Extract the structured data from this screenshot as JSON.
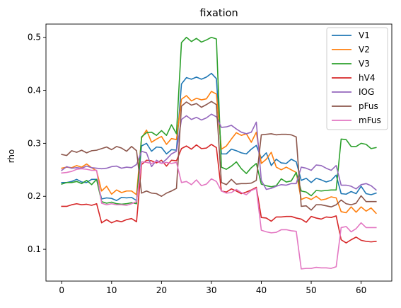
{
  "chart_data": {
    "type": "line",
    "title": "fixation",
    "xlabel": "",
    "ylabel": "rho",
    "xlim": [
      -3.15,
      66.15
    ],
    "ylim": [
      0.04,
      0.525
    ],
    "xticks": [
      0,
      10,
      20,
      30,
      40,
      50,
      60
    ],
    "yticks": [
      0.1,
      0.2,
      0.3,
      0.4,
      0.5
    ],
    "grid": false,
    "legend_position": "upper-right",
    "series": [
      {
        "name": "V1",
        "color": "#1f77b4",
        "values": [
          0.226,
          0.226,
          0.228,
          0.232,
          0.227,
          0.226,
          0.232,
          0.232,
          0.195,
          0.197,
          0.196,
          0.192,
          0.198,
          0.197,
          0.198,
          0.192,
          0.295,
          0.3,
          0.285,
          0.293,
          0.292,
          0.28,
          0.288,
          0.287,
          0.412,
          0.424,
          0.421,
          0.425,
          0.421,
          0.425,
          0.432,
          0.422,
          0.28,
          0.28,
          0.289,
          0.286,
          0.282,
          0.28,
          0.289,
          0.296,
          0.272,
          0.282,
          0.258,
          0.27,
          0.263,
          0.262,
          0.27,
          0.265,
          0.23,
          0.234,
          0.226,
          0.234,
          0.231,
          0.227,
          0.23,
          0.24,
          0.205,
          0.204,
          0.209,
          0.205,
          0.219,
          0.205,
          0.203,
          0.206
        ]
      },
      {
        "name": "V2",
        "color": "#ff7f0e",
        "values": [
          0.253,
          0.255,
          0.254,
          0.258,
          0.255,
          0.261,
          0.254,
          0.248,
          0.21,
          0.219,
          0.204,
          0.212,
          0.207,
          0.21,
          0.21,
          0.203,
          0.31,
          0.325,
          0.302,
          0.308,
          0.313,
          0.298,
          0.309,
          0.307,
          0.383,
          0.39,
          0.38,
          0.385,
          0.382,
          0.384,
          0.398,
          0.393,
          0.289,
          0.295,
          0.308,
          0.32,
          0.315,
          0.318,
          0.302,
          0.321,
          0.262,
          0.27,
          0.283,
          0.255,
          0.25,
          0.255,
          0.25,
          0.245,
          0.194,
          0.198,
          0.194,
          0.2,
          0.193,
          0.195,
          0.199,
          0.197,
          0.171,
          0.169,
          0.18,
          0.17,
          0.18,
          0.172,
          0.178,
          0.168
        ]
      },
      {
        "name": "V3",
        "color": "#2ca02c",
        "values": [
          0.223,
          0.226,
          0.226,
          0.228,
          0.224,
          0.23,
          0.222,
          0.232,
          0.19,
          0.187,
          0.189,
          0.186,
          0.185,
          0.186,
          0.188,
          0.186,
          0.312,
          0.32,
          0.321,
          0.315,
          0.324,
          0.315,
          0.335,
          0.318,
          0.49,
          0.5,
          0.492,
          0.498,
          0.491,
          0.495,
          0.5,
          0.497,
          0.255,
          0.251,
          0.257,
          0.265,
          0.252,
          0.243,
          0.254,
          0.262,
          0.223,
          0.22,
          0.218,
          0.22,
          0.233,
          0.227,
          0.229,
          0.245,
          0.21,
          0.208,
          0.201,
          0.211,
          0.21,
          0.211,
          0.212,
          0.212,
          0.308,
          0.307,
          0.294,
          0.294,
          0.3,
          0.298,
          0.29,
          0.292
        ]
      },
      {
        "name": "hV4",
        "color": "#d62728",
        "values": [
          0.181,
          0.181,
          0.184,
          0.186,
          0.184,
          0.185,
          0.183,
          0.186,
          0.15,
          0.156,
          0.15,
          0.154,
          0.152,
          0.156,
          0.158,
          0.152,
          0.26,
          0.268,
          0.267,
          0.263,
          0.268,
          0.257,
          0.268,
          0.267,
          0.29,
          0.295,
          0.289,
          0.297,
          0.29,
          0.291,
          0.298,
          0.292,
          0.21,
          0.208,
          0.214,
          0.21,
          0.205,
          0.208,
          0.212,
          0.217,
          0.16,
          0.159,
          0.153,
          0.161,
          0.161,
          0.162,
          0.162,
          0.159,
          0.157,
          0.151,
          0.162,
          0.159,
          0.157,
          0.161,
          0.16,
          0.163,
          0.118,
          0.112,
          0.118,
          0.123,
          0.117,
          0.115,
          0.114,
          0.115
        ]
      },
      {
        "name": "IOG",
        "color": "#9467bd",
        "values": [
          0.249,
          0.256,
          0.253,
          0.254,
          0.253,
          0.257,
          0.254,
          0.253,
          0.252,
          0.253,
          0.256,
          0.257,
          0.253,
          0.255,
          0.254,
          0.26,
          0.285,
          0.282,
          0.256,
          0.268,
          0.262,
          0.27,
          0.28,
          0.285,
          0.345,
          0.352,
          0.345,
          0.349,
          0.344,
          0.348,
          0.355,
          0.35,
          0.33,
          0.331,
          0.334,
          0.327,
          0.321,
          0.318,
          0.321,
          0.34,
          0.23,
          0.213,
          0.215,
          0.219,
          0.222,
          0.221,
          0.224,
          0.224,
          0.255,
          0.253,
          0.249,
          0.259,
          0.258,
          0.253,
          0.249,
          0.258,
          0.221,
          0.221,
          0.219,
          0.214,
          0.222,
          0.224,
          0.22,
          0.212
        ]
      },
      {
        "name": "pFus",
        "color": "#8c564b",
        "values": [
          0.279,
          0.277,
          0.286,
          0.283,
          0.287,
          0.282,
          0.286,
          0.287,
          0.29,
          0.293,
          0.288,
          0.294,
          0.291,
          0.285,
          0.294,
          0.286,
          0.206,
          0.21,
          0.206,
          0.205,
          0.2,
          0.206,
          0.21,
          0.215,
          0.37,
          0.378,
          0.372,
          0.375,
          0.368,
          0.373,
          0.379,
          0.373,
          0.226,
          0.222,
          0.232,
          0.223,
          0.224,
          0.224,
          0.225,
          0.23,
          0.316,
          0.317,
          0.318,
          0.316,
          0.317,
          0.317,
          0.316,
          0.312,
          0.181,
          0.182,
          0.174,
          0.184,
          0.184,
          0.182,
          0.18,
          0.184,
          0.193,
          0.186,
          0.184,
          0.187,
          0.201,
          0.19,
          0.19,
          0.19
        ]
      },
      {
        "name": "mFus",
        "color": "#e377c2",
        "values": [
          0.244,
          0.245,
          0.247,
          0.251,
          0.252,
          0.251,
          0.249,
          0.249,
          0.187,
          0.184,
          0.186,
          0.184,
          0.184,
          0.183,
          0.186,
          0.19,
          0.265,
          0.264,
          0.262,
          0.266,
          0.262,
          0.264,
          0.262,
          0.264,
          0.226,
          0.228,
          0.222,
          0.231,
          0.22,
          0.223,
          0.233,
          0.228,
          0.21,
          0.206,
          0.207,
          0.213,
          0.207,
          0.203,
          0.211,
          0.215,
          0.136,
          0.133,
          0.131,
          0.132,
          0.137,
          0.137,
          0.135,
          0.134,
          0.063,
          0.064,
          0.064,
          0.066,
          0.065,
          0.065,
          0.064,
          0.067,
          0.141,
          0.143,
          0.133,
          0.139,
          0.15,
          0.141,
          0.141,
          0.141
        ]
      }
    ]
  }
}
